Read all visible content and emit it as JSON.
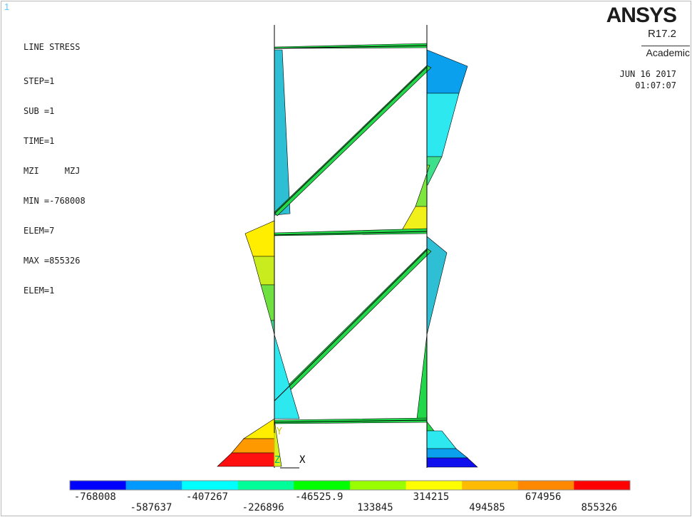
{
  "viewport_number": "1",
  "info": {
    "title": "LINE STRESS",
    "lines": [
      "STEP=1",
      "SUB =1",
      "TIME=1",
      "MZI     MZJ",
      "MIN =-768008",
      "ELEM=7",
      "MAX =855326",
      "ELEM=1"
    ]
  },
  "brand": {
    "logo": "ANSYS",
    "release": "R17.2",
    "edition": "Academic",
    "date": "JUN 16 2017",
    "time": "01:07:07"
  },
  "triad": {
    "y_label": "Y",
    "z_label": "Z",
    "x_label": "X"
  },
  "legend": {
    "labels_upper": [
      "-768008",
      "-407267",
      "-46525.9",
      "314215",
      "674956"
    ],
    "labels_lower": [
      "-587637",
      "-226896",
      "133845",
      "494585",
      "855326"
    ],
    "colors": [
      "#0000ff",
      "#0099ff",
      "#00ffff",
      "#00ff99",
      "#00ff00",
      "#99ff00",
      "#ffff00",
      "#ffbb00",
      "#ff8800",
      "#ff0000"
    ]
  }
}
